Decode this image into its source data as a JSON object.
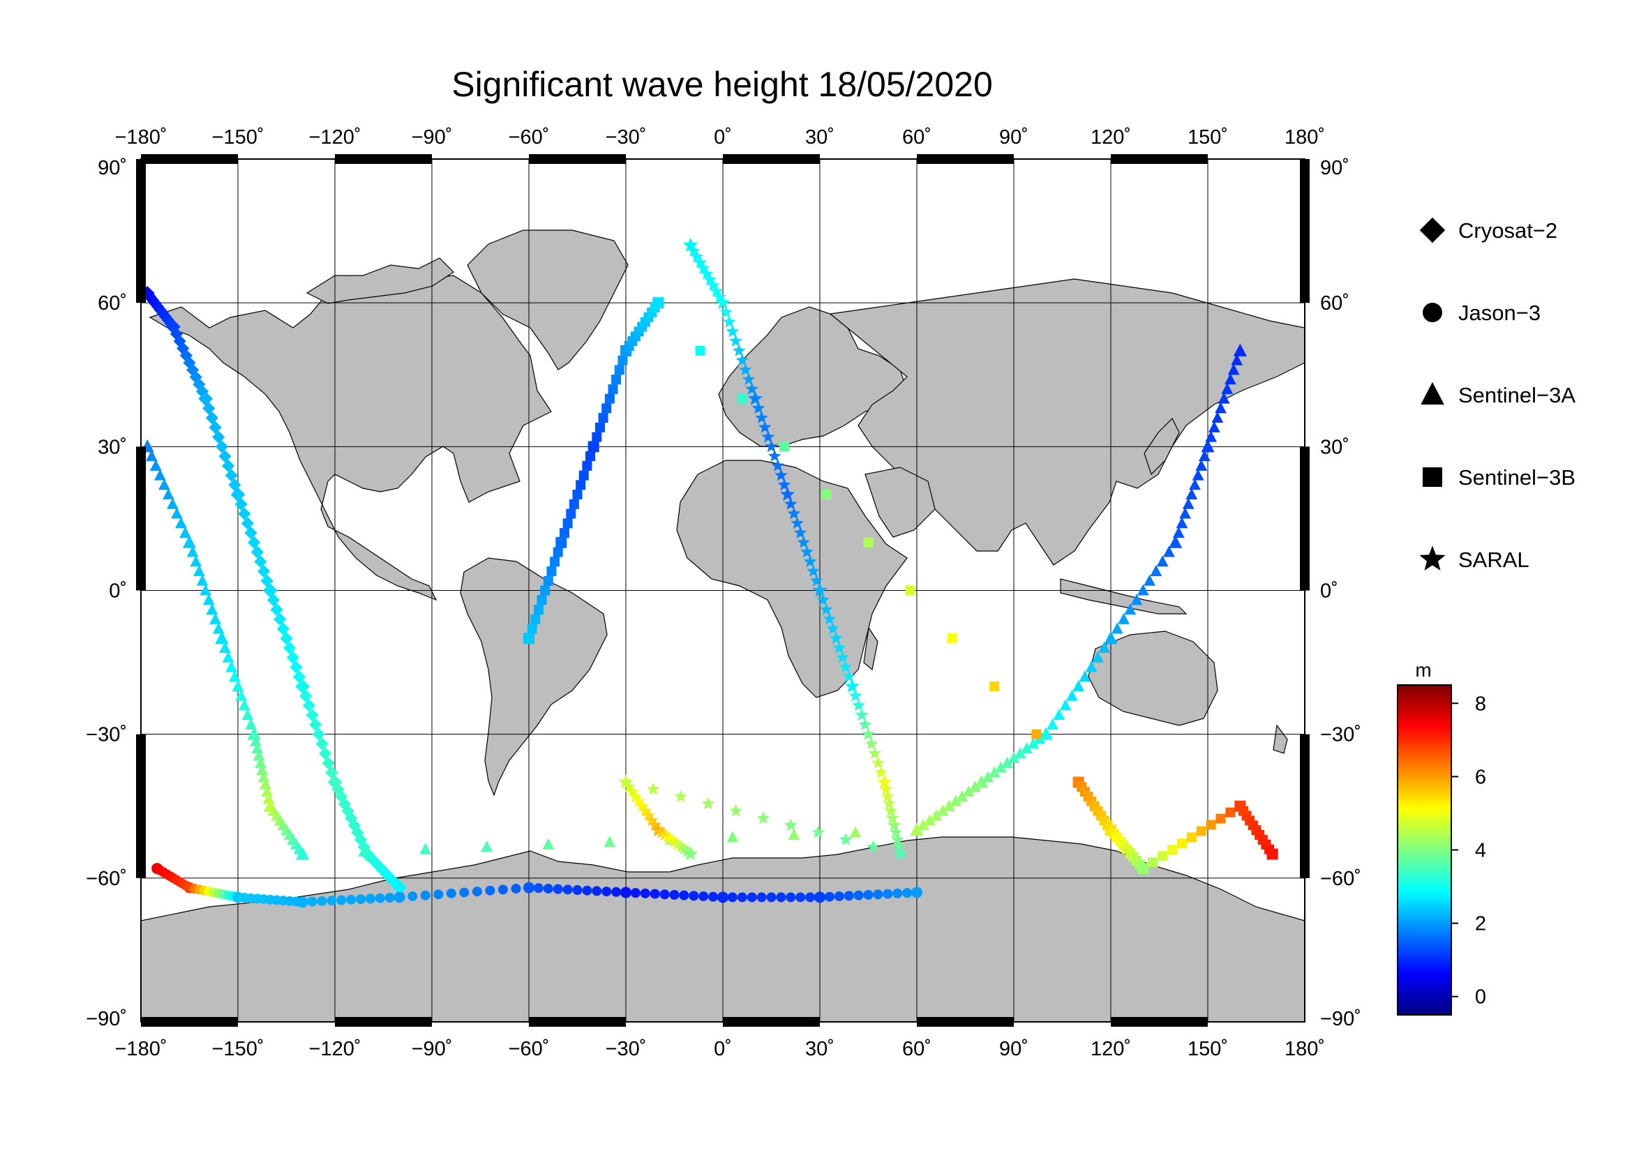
{
  "map": {
    "title": "Significant wave height 18/05/2020",
    "projection": "equirectangular",
    "lon_range": [
      -180,
      180
    ],
    "lat_range": [
      -90,
      90
    ],
    "lon_ticks": [
      -180,
      -150,
      -120,
      -90,
      -60,
      -30,
      0,
      30,
      60,
      90,
      120,
      150,
      180
    ],
    "lat_ticks": [
      90,
      60,
      30,
      0,
      -30,
      -60,
      -90
    ],
    "lon_tick_labels": [
      "−180˚",
      "−150˚",
      "−120˚",
      "−90˚",
      "−60˚",
      "−30˚",
      "0˚",
      "30˚",
      "60˚",
      "90˚",
      "120˚",
      "150˚",
      "180˚"
    ],
    "lat_tick_labels": [
      "90˚",
      "60˚",
      "30˚",
      "0˚",
      "−30˚",
      "−60˚",
      "−90˚"
    ],
    "grid": true,
    "colors": {
      "land": "#bdbdbd",
      "ocean": "#ffffff",
      "frame": "#000000"
    }
  },
  "legend": {
    "position": "right",
    "entries": [
      {
        "name": "Cryosat−2",
        "marker": "diamond"
      },
      {
        "name": "Jason−3",
        "marker": "circle"
      },
      {
        "name": "Sentinel−3A",
        "marker": "triangle"
      },
      {
        "name": "Sentinel−3B",
        "marker": "square"
      },
      {
        "name": "SARAL",
        "marker": "star"
      }
    ]
  },
  "colorbar": {
    "unit": "m",
    "min": -0.5,
    "max": 8.5,
    "ticks": [
      0,
      2,
      4,
      6,
      8
    ],
    "tick_labels": [
      "0",
      "2",
      "4",
      "6",
      "8"
    ],
    "colormap": "jet"
  },
  "tracks_note": "",
  "chart_data": {
    "type": "scatter",
    "variable": "significant wave height",
    "unit": "m",
    "date": "18/05/2020",
    "tracks": [
      {
        "satellite": "Cryosat−2",
        "points": [
          [
            -178,
            62,
            0.6
          ],
          [
            -170,
            55,
            1.2
          ],
          [
            -160,
            40,
            2.2
          ],
          [
            -150,
            20,
            2.4
          ],
          [
            -140,
            0,
            2.6
          ],
          [
            -130,
            -20,
            3.0
          ],
          [
            -120,
            -40,
            3.4
          ],
          [
            -110,
            -55,
            3.2
          ],
          [
            -100,
            -62,
            2.8
          ]
        ]
      },
      {
        "satellite": "Jason−3",
        "points": [
          [
            -175,
            -58,
            7.5
          ],
          [
            -165,
            -62,
            6.8
          ],
          [
            -150,
            -64,
            2.4
          ],
          [
            -130,
            -65,
            2.2
          ],
          [
            -100,
            -64,
            2.0
          ],
          [
            -60,
            -62,
            1.4
          ],
          [
            -30,
            -63,
            0.8
          ],
          [
            0,
            -64,
            1.0
          ],
          [
            30,
            -64,
            1.2
          ],
          [
            60,
            -63,
            2.0
          ]
        ]
      },
      {
        "satellite": "Sentinel−3A",
        "points": [
          [
            -178,
            30,
            1.8
          ],
          [
            -165,
            10,
            2.4
          ],
          [
            -155,
            -10,
            2.6
          ],
          [
            -145,
            -30,
            3.4
          ],
          [
            -140,
            -45,
            4.6
          ],
          [
            -130,
            -55,
            3.2
          ],
          [
            60,
            -50,
            4.4
          ],
          [
            80,
            -40,
            4.0
          ],
          [
            100,
            -30,
            3.0
          ],
          [
            120,
            -10,
            2.2
          ],
          [
            140,
            10,
            1.4
          ],
          [
            150,
            30,
            1.2
          ],
          [
            160,
            50,
            1.0
          ]
        ]
      },
      {
        "satellite": "Sentinel−3B",
        "points": [
          [
            -60,
            -10,
            2.4
          ],
          [
            -50,
            10,
            1.6
          ],
          [
            -40,
            30,
            1.2
          ],
          [
            -30,
            50,
            2.0
          ],
          [
            -20,
            60,
            2.6
          ],
          [
            110,
            -40,
            6.2
          ],
          [
            120,
            -50,
            5.4
          ],
          [
            130,
            -58,
            4.2
          ],
          [
            160,
            -45,
            6.8
          ],
          [
            170,
            -55,
            7.2
          ]
        ]
      },
      {
        "satellite": "SARAL",
        "points": [
          [
            -10,
            72,
            2.8
          ],
          [
            0,
            60,
            3.0
          ],
          [
            10,
            40,
            1.8
          ],
          [
            20,
            20,
            1.6
          ],
          [
            30,
            0,
            2.2
          ],
          [
            40,
            -20,
            2.8
          ],
          [
            50,
            -40,
            5.0
          ],
          [
            55,
            -55,
            3.6
          ],
          [
            -30,
            -40,
            4.6
          ],
          [
            -20,
            -50,
            5.8
          ],
          [
            -10,
            -55,
            4.0
          ]
        ]
      }
    ]
  }
}
